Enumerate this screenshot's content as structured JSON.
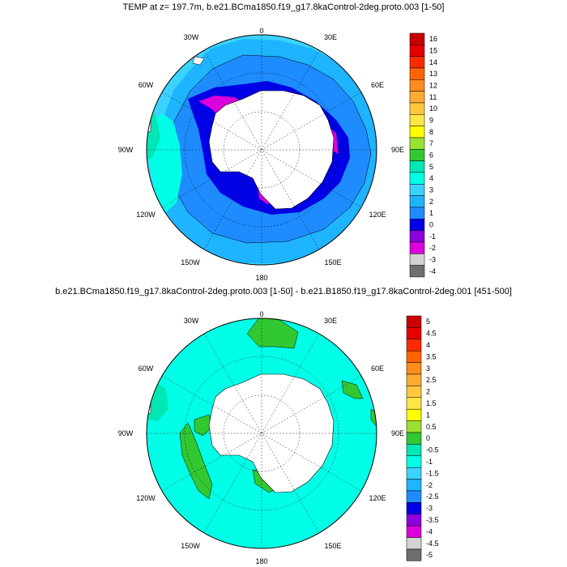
{
  "panel_top": {
    "title": "TEMP at z= 197.7m, b.e21.BCma1850.f19_g17.8kaControl-2deg.proto.003 [1-50]",
    "longitude_labels": [
      "0",
      "30E",
      "60E",
      "90E",
      "120E",
      "150E",
      "180",
      "150W",
      "120W",
      "90W",
      "60W",
      "30W"
    ],
    "colorbar_labels": [
      "16",
      "15",
      "14",
      "13",
      "12",
      "11",
      "10",
      "9",
      "8",
      "7",
      "6",
      "5",
      "4",
      "3",
      "2",
      "1",
      "0",
      "-1",
      "-2",
      "-3",
      "-4"
    ],
    "colorbar_colors": [
      "#c80000",
      "#e60000",
      "#ff2a00",
      "#ff6400",
      "#ff8c1e",
      "#ffaa32",
      "#ffc83c",
      "#ffe646",
      "#ffff00",
      "#9be132",
      "#32c832",
      "#00e6b4",
      "#00ffe6",
      "#3cd2ff",
      "#1eb4ff",
      "#1e8cff",
      "#0000e6",
      "#8c00dc",
      "#dc00dc",
      "#d2d2d2",
      "#6e6e6e"
    ]
  },
  "panel_bottom": {
    "title": "b.e21.BCma1850.f19_g17.8kaControl-2deg.proto.003 [1-50] - b.e21.B1850.f19_g17.8kaControl-2deg.001 [451-500]",
    "longitude_labels": [
      "0",
      "30E",
      "60E",
      "90E",
      "120E",
      "150E",
      "180",
      "150W",
      "120W",
      "90W",
      "60W",
      "30W"
    ],
    "colorbar_labels": [
      "5",
      "4.5",
      "4",
      "3.5",
      "3",
      "2.5",
      "2",
      "1.5",
      "1",
      "0.5",
      "0",
      "-0.5",
      "-1",
      "-1.5",
      "-2",
      "-2.5",
      "-3",
      "-3.5",
      "-4",
      "-4.5",
      "-5"
    ],
    "colorbar_colors": [
      "#c80000",
      "#e60000",
      "#ff2a00",
      "#ff6400",
      "#ff8c1e",
      "#ffaa32",
      "#ffc83c",
      "#ffe646",
      "#ffff00",
      "#9be132",
      "#32c832",
      "#00e6b4",
      "#00ffe6",
      "#3cd2ff",
      "#1eb4ff",
      "#1e8cff",
      "#0000e6",
      "#8c00dc",
      "#dc00dc",
      "#d2d2d2",
      "#6e6e6e"
    ]
  }
}
